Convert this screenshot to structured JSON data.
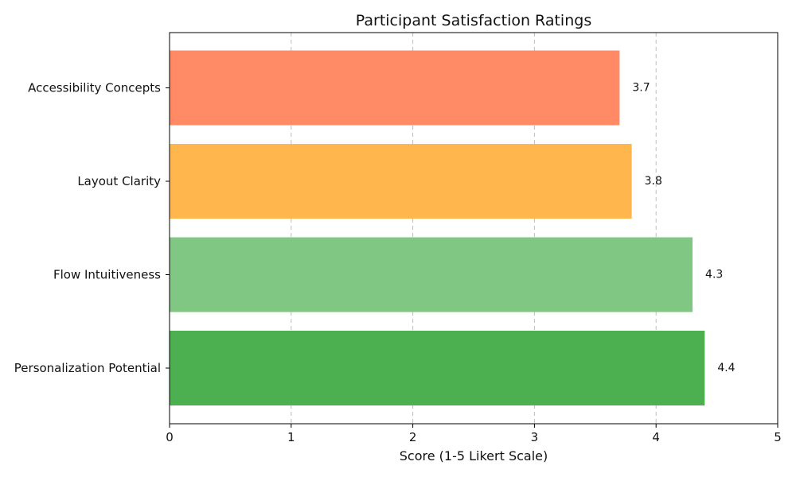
{
  "chart_data": {
    "type": "bar",
    "orientation": "horizontal",
    "title": "Participant Satisfaction Ratings",
    "xlabel": "Score (1-5 Likert Scale)",
    "ylabel": "",
    "xlim": [
      0,
      5
    ],
    "xticks": [
      0,
      1,
      2,
      3,
      4,
      5
    ],
    "grid": "x-dashed",
    "categories": [
      "Personalization Potential",
      "Flow Intuitiveness",
      "Layout Clarity",
      "Accessibility Concepts"
    ],
    "values": [
      4.4,
      4.3,
      3.8,
      3.7
    ],
    "value_labels": [
      "4.4",
      "4.3",
      "3.8",
      "3.7"
    ],
    "colors": [
      "#4caf50",
      "#81c784",
      "#ffb74d",
      "#ff8a65"
    ]
  }
}
